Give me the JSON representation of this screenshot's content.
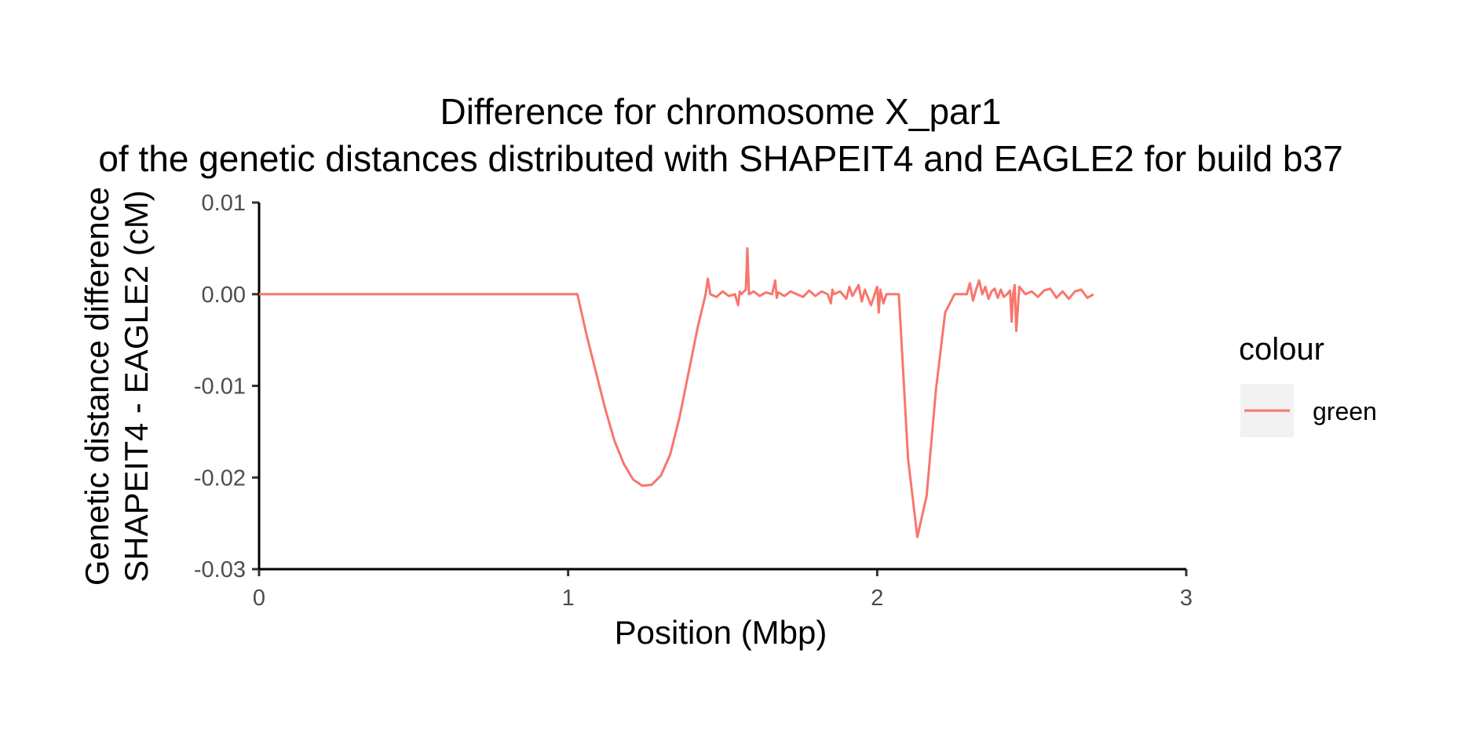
{
  "chart_data": {
    "type": "line",
    "title": "Difference for chromosome X_par1",
    "subtitle": "of the genetic distances distributed with SHAPEIT4 and EAGLE2 for build b37",
    "xlabel": "Position (Mbp)",
    "ylabel_line1": "Genetic distance difference",
    "ylabel_line2": "SHAPEIT4 - EAGLE2 (cM)",
    "xlim": [
      0,
      3
    ],
    "ylim": [
      -0.03,
      0.01
    ],
    "x_ticks": [
      0,
      1,
      2,
      3
    ],
    "x_tick_labels": [
      "0",
      "1",
      "2",
      "3"
    ],
    "y_ticks": [
      0.01,
      0.0,
      -0.01,
      -0.02,
      -0.03
    ],
    "y_tick_labels": [
      "0.01",
      "0.00",
      "-0.01",
      "-0.02",
      "-0.03"
    ],
    "grid": false,
    "legend": {
      "title": "colour",
      "position": "right",
      "entries": [
        {
          "label": "green",
          "color": "#F8766D"
        }
      ]
    },
    "series": [
      {
        "label": "green",
        "color": "#F8766D",
        "x": [
          0,
          0.1,
          0.2,
          0.3,
          0.4,
          0.5,
          0.6,
          0.7,
          0.8,
          0.9,
          1.0,
          1.03,
          1.06,
          1.09,
          1.12,
          1.15,
          1.18,
          1.21,
          1.24,
          1.27,
          1.3,
          1.33,
          1.36,
          1.39,
          1.42,
          1.445,
          1.452,
          1.46,
          1.48,
          1.5,
          1.52,
          1.54,
          1.55,
          1.555,
          1.56,
          1.575,
          1.58,
          1.585,
          1.6,
          1.62,
          1.64,
          1.66,
          1.67,
          1.675,
          1.68,
          1.7,
          1.72,
          1.74,
          1.76,
          1.78,
          1.8,
          1.82,
          1.84,
          1.85,
          1.855,
          1.86,
          1.88,
          1.9,
          1.91,
          1.92,
          1.94,
          1.95,
          1.96,
          1.98,
          2.0,
          2.005,
          2.01,
          2.02,
          2.03,
          2.05,
          2.07,
          2.1,
          2.13,
          2.16,
          2.19,
          2.22,
          2.25,
          2.27,
          2.29,
          2.3,
          2.31,
          2.32,
          2.33,
          2.34,
          2.35,
          2.36,
          2.37,
          2.38,
          2.39,
          2.4,
          2.41,
          2.42,
          2.43,
          2.435,
          2.44,
          2.445,
          2.45,
          2.46,
          2.48,
          2.5,
          2.52,
          2.54,
          2.56,
          2.58,
          2.6,
          2.62,
          2.64,
          2.66,
          2.68,
          2.7
        ],
        "y": [
          0,
          0,
          0,
          0,
          0,
          0,
          0,
          0,
          0,
          0,
          0,
          0,
          -0.0045,
          -0.0085,
          -0.0125,
          -0.016,
          -0.0185,
          -0.0202,
          -0.0209,
          -0.0208,
          -0.0198,
          -0.0175,
          -0.0135,
          -0.0085,
          -0.0035,
          0,
          0.0017,
          0,
          -0.0003,
          0.0003,
          -0.0002,
          0,
          -0.0012,
          0.0003,
          0,
          0.0005,
          0.005,
          0,
          0.0003,
          -0.0002,
          0.0002,
          0,
          0.0015,
          -0.0004,
          0.0002,
          -0.0002,
          0.0003,
          0,
          -0.0003,
          0.0004,
          -0.0002,
          0.0003,
          0,
          -0.001,
          0.0005,
          0,
          0.0003,
          -0.0005,
          0.0008,
          -0.0002,
          0.001,
          -0.0008,
          0.0005,
          -0.0012,
          0.0008,
          -0.002,
          0.0005,
          -0.001,
          0,
          0,
          0,
          -0.018,
          -0.0265,
          -0.022,
          -0.0105,
          -0.002,
          0,
          0,
          0,
          0.0012,
          -0.0007,
          0.0005,
          0.0015,
          0,
          0.0008,
          -0.0005,
          0.0003,
          0.0006,
          -0.0004,
          0.0005,
          -0.0003,
          0,
          0.0004,
          -0.003,
          0,
          0.001,
          -0.004,
          0.0008,
          0,
          0.0003,
          -0.0003,
          0.0004,
          0.0006,
          -0.0004,
          0.0003,
          -0.0005,
          0.0003,
          0.0005,
          -0.0004,
          0
        ]
      }
    ]
  }
}
